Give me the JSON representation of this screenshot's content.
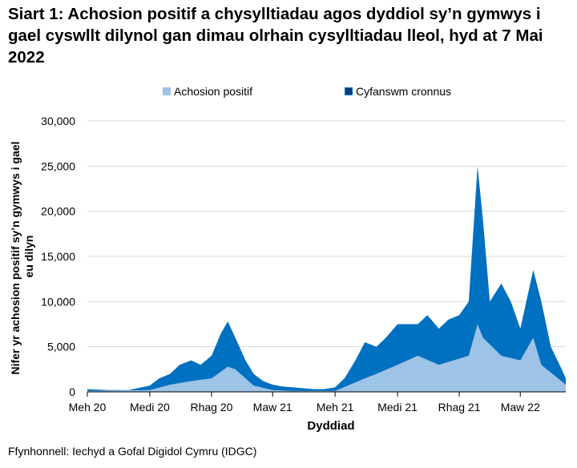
{
  "title": "Siart 1: Achosion positif a chysylltiadau agos dyddiol sy’n gymwys i gael cyswllt dilynol gan dimau olrhain cysylltiadau lleol, hyd at 7 Mai 2022",
  "source": "Ffynhonnell: Iechyd a Gofal Digidol Cymru (IDGC)",
  "chart_data": {
    "type": "area",
    "xlabel": "Dyddiad",
    "ylabel": "Nifer yr achosion positif sy’n gymwys i gael eu dilyn",
    "ylim": [
      0,
      30000
    ],
    "yticks": [
      0,
      5000,
      10000,
      15000,
      20000,
      25000,
      30000
    ],
    "ytick_labels": [
      "0",
      "5,000",
      "10,000",
      "15,000",
      "20,000",
      "25,000",
      "30,000"
    ],
    "xlim": [
      "2020-06-01",
      "2022-05-07"
    ],
    "xticks": [
      "2020-06-01",
      "2020-09-01",
      "2020-12-01",
      "2021-03-01",
      "2021-06-01",
      "2021-09-01",
      "2021-12-01",
      "2022-03-01"
    ],
    "xtick_labels": [
      "Meh 20",
      "Medi 20",
      "Rhag 20",
      "Maw 21",
      "Meh 21",
      "Medi 21",
      "Rhag 21",
      "Maw 22"
    ],
    "grid": "horizontal",
    "legend": "top",
    "series": [
      {
        "name": "Cyfanswm cronnus",
        "color": "#0070c0",
        "x": [
          "2020-06-01",
          "2020-07-01",
          "2020-08-01",
          "2020-09-01",
          "2020-09-15",
          "2020-10-01",
          "2020-10-15",
          "2020-11-01",
          "2020-11-15",
          "2020-12-01",
          "2020-12-15",
          "2020-12-25",
          "2021-01-05",
          "2021-01-20",
          "2021-02-01",
          "2021-02-15",
          "2021-03-01",
          "2021-03-15",
          "2021-04-01",
          "2021-04-15",
          "2021-05-01",
          "2021-05-15",
          "2021-06-01",
          "2021-06-15",
          "2021-07-01",
          "2021-07-15",
          "2021-08-01",
          "2021-08-15",
          "2021-09-01",
          "2021-09-15",
          "2021-10-01",
          "2021-10-15",
          "2021-11-01",
          "2021-11-15",
          "2021-12-01",
          "2021-12-15",
          "2021-12-28",
          "2022-01-05",
          "2022-01-15",
          "2022-02-01",
          "2022-02-15",
          "2022-03-01",
          "2022-03-20",
          "2022-04-01",
          "2022-04-15",
          "2022-05-01",
          "2022-05-07"
        ],
        "values": [
          300,
          200,
          200,
          700,
          1500,
          2000,
          3000,
          3500,
          3000,
          4000,
          6500,
          7800,
          6000,
          3500,
          2000,
          1200,
          800,
          600,
          500,
          400,
          300,
          300,
          500,
          1500,
          3500,
          5500,
          5000,
          6000,
          7500,
          7500,
          7500,
          8500,
          7000,
          8000,
          8500,
          10000,
          25000,
          19000,
          10000,
          12000,
          10000,
          7000,
          13500,
          10000,
          5000,
          2500,
          1500
        ]
      },
      {
        "name": "Achosion positif",
        "color": "#9dc3e6",
        "x": [
          "2020-06-01",
          "2020-09-01",
          "2020-10-01",
          "2020-11-01",
          "2020-12-01",
          "2020-12-25",
          "2021-01-05",
          "2021-02-01",
          "2021-03-01",
          "2021-04-01",
          "2021-06-01",
          "2021-07-15",
          "2021-08-01",
          "2021-09-01",
          "2021-10-01",
          "2021-11-01",
          "2021-12-15",
          "2021-12-28",
          "2022-01-05",
          "2022-02-01",
          "2022-03-01",
          "2022-03-20",
          "2022-04-01",
          "2022-05-07"
        ],
        "values": [
          100,
          200,
          800,
          1200,
          1500,
          2800,
          2500,
          700,
          200,
          100,
          100,
          1500,
          2000,
          3000,
          4000,
          3000,
          4000,
          7500,
          6000,
          4000,
          3500,
          6000,
          3000,
          800
        ]
      }
    ]
  }
}
